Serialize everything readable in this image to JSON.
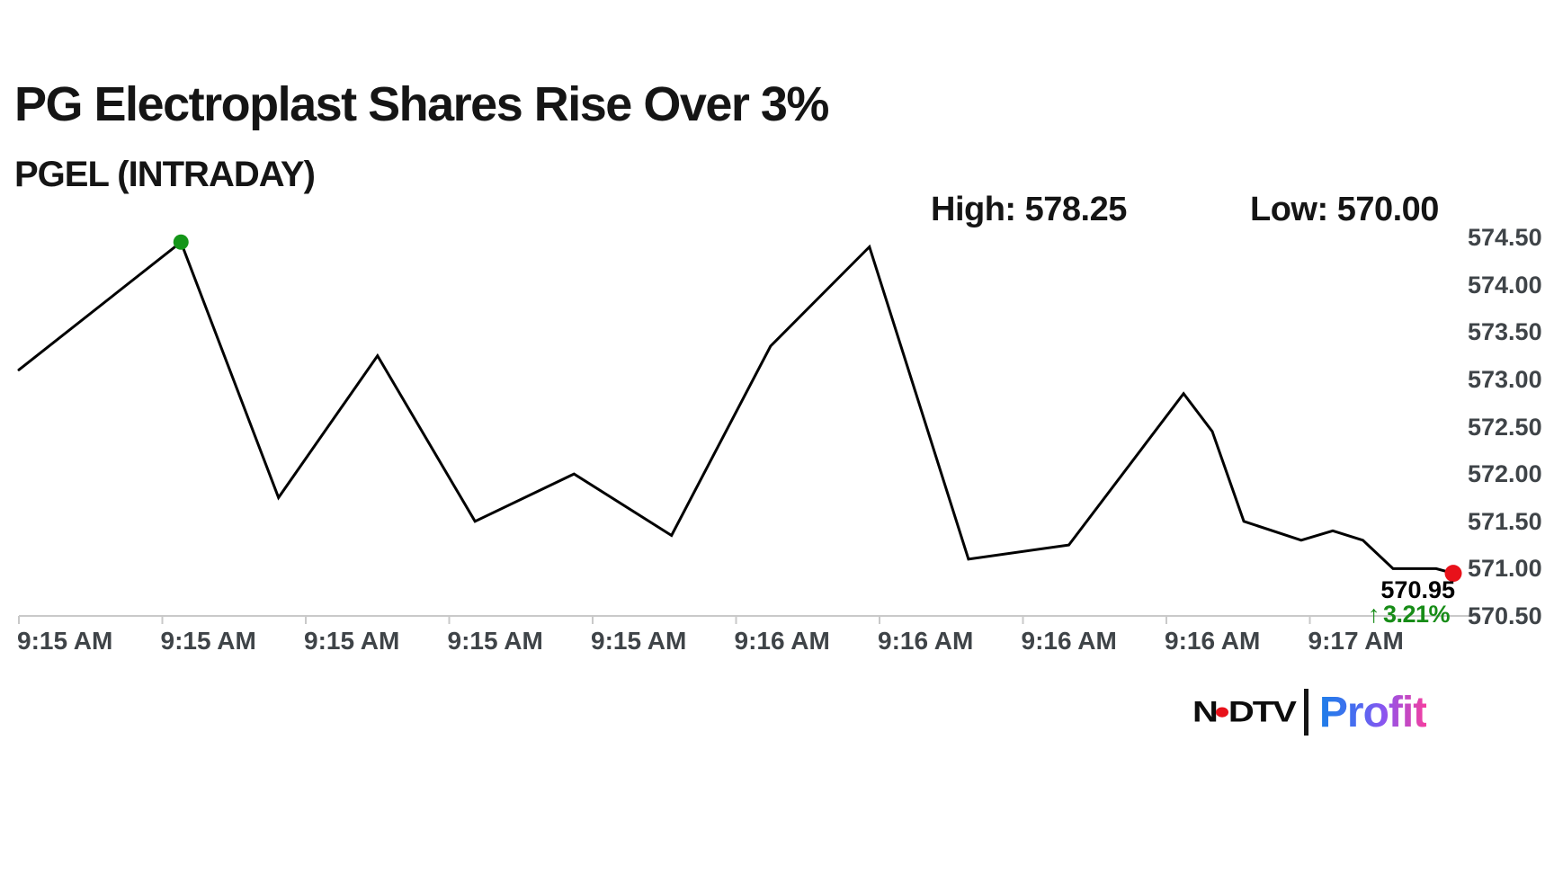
{
  "header": {
    "title": "PG Electroplast Shares Rise Over 3%",
    "subtitle": "PGEL (INTRADAY)"
  },
  "stats": {
    "high_label": "High:",
    "high_value": "578.25",
    "low_label": "Low:",
    "low_value": "570.00"
  },
  "annotation": {
    "last_price": "570.95",
    "arrow": "↑",
    "change_pct": "3.21%"
  },
  "logo": {
    "ndtv_n": "N",
    "ndtv_dtv": "DTV",
    "profit": "Profit"
  },
  "colors": {
    "line": "#000000",
    "max_marker_green": "#149619",
    "last_marker_red": "#e8111a",
    "change_green": "#178c17",
    "axis_text": "#3f4448",
    "axis_line": "#c9c9c9",
    "profit_gradient_start": "#1d7ee8",
    "profit_gradient_end": "#f43fa0"
  },
  "chart_data": {
    "type": "line",
    "title": "PG Electroplast Shares Rise Over 3%",
    "series_name": "PGEL intraday price",
    "high": 578.25,
    "low": 570.0,
    "last": 570.95,
    "change_pct": 3.21,
    "ylim": [
      570.5,
      574.5
    ],
    "y_ticks": [
      "574.50",
      "574.00",
      "573.50",
      "573.00",
      "572.50",
      "572.00",
      "571.50",
      "571.00",
      "570.50"
    ],
    "x_tick_labels": [
      "9:15 AM",
      "9:15 AM",
      "9:15 AM",
      "9:15 AM",
      "9:15 AM",
      "9:16 AM",
      "9:16 AM",
      "9:16 AM",
      "9:16 AM",
      "9:17 AM"
    ],
    "grid": false,
    "legend": "none",
    "points": [
      {
        "t": 0.0,
        "price": 573.1
      },
      {
        "t": 0.113,
        "price": 574.45
      },
      {
        "t": 0.181,
        "price": 571.75
      },
      {
        "t": 0.25,
        "price": 573.25
      },
      {
        "t": 0.318,
        "price": 571.5
      },
      {
        "t": 0.387,
        "price": 572.0
      },
      {
        "t": 0.455,
        "price": 571.35
      },
      {
        "t": 0.524,
        "price": 573.35
      },
      {
        "t": 0.593,
        "price": 574.4
      },
      {
        "t": 0.662,
        "price": 571.1
      },
      {
        "t": 0.732,
        "price": 571.25
      },
      {
        "t": 0.812,
        "price": 572.85
      },
      {
        "t": 0.832,
        "price": 572.45
      },
      {
        "t": 0.854,
        "price": 571.5
      },
      {
        "t": 0.894,
        "price": 571.3
      },
      {
        "t": 0.916,
        "price": 571.4
      },
      {
        "t": 0.937,
        "price": 571.3
      },
      {
        "t": 0.958,
        "price": 571.0
      },
      {
        "t": 0.988,
        "price": 571.0
      },
      {
        "t": 1.0,
        "price": 570.95
      }
    ],
    "max_marker_index": 1,
    "last_marker_index": 19
  }
}
